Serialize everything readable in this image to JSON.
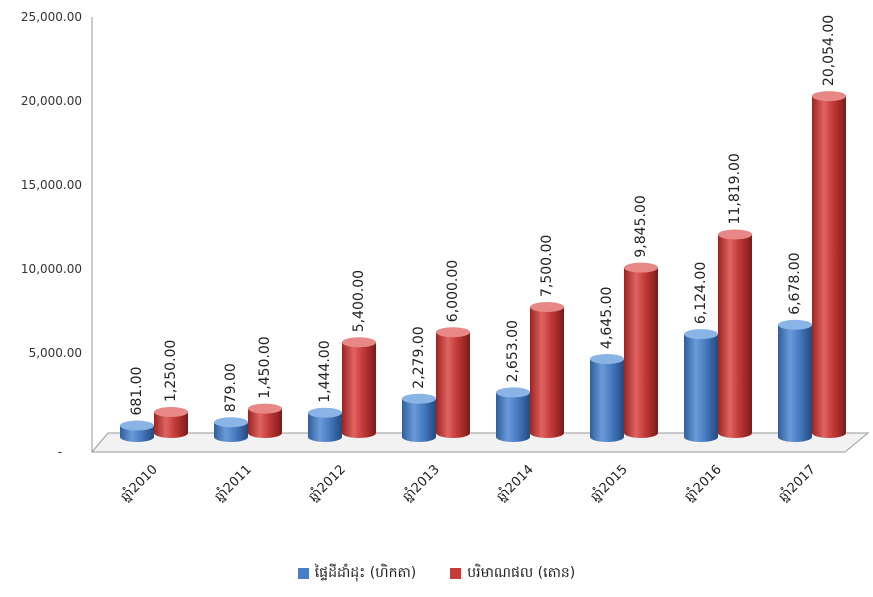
{
  "chart_data": {
    "type": "bar",
    "title": "",
    "xlabel": "",
    "ylabel": "",
    "ylim": [
      0,
      25000
    ],
    "yticks": [
      "-",
      "5,000.00",
      "10,000.00",
      "15,000.00",
      "20,000.00",
      "25,000.00"
    ],
    "categories": [
      "ឆ្នាំ2010",
      "ឆ្នាំ2011",
      "ឆ្នាំ2012",
      "ឆ្នាំ2013",
      "ឆ្នាំ2014",
      "ឆ្នាំ2015",
      "ឆ្នាំ2016",
      "ឆ្នាំ2017"
    ],
    "series": [
      {
        "name": "ផ្ទៃដីដាំដុះ (ហិកតា)",
        "color": "#4a7ec4",
        "values": [
          681,
          879,
          1444,
          2279,
          2653,
          4645,
          6124,
          6678
        ],
        "labels": [
          "681.00",
          "879.00",
          "1,444.00",
          "2,279.00",
          "2,653.00",
          "4,645.00",
          "6,124.00",
          "6,678.00"
        ]
      },
      {
        "name": "បរិមាណផល (តោន)",
        "color": "#c43c3a",
        "values": [
          1250,
          1450,
          5400,
          6000,
          7500,
          9845,
          11819,
          20054
        ],
        "labels": [
          "1,250.00",
          "1,450.00",
          "5,400.00",
          "6,000.00",
          "7,500.00",
          "9,845.00",
          "11,819.00",
          "20,054.00"
        ]
      }
    ],
    "grid": false,
    "legend_position": "bottom"
  }
}
